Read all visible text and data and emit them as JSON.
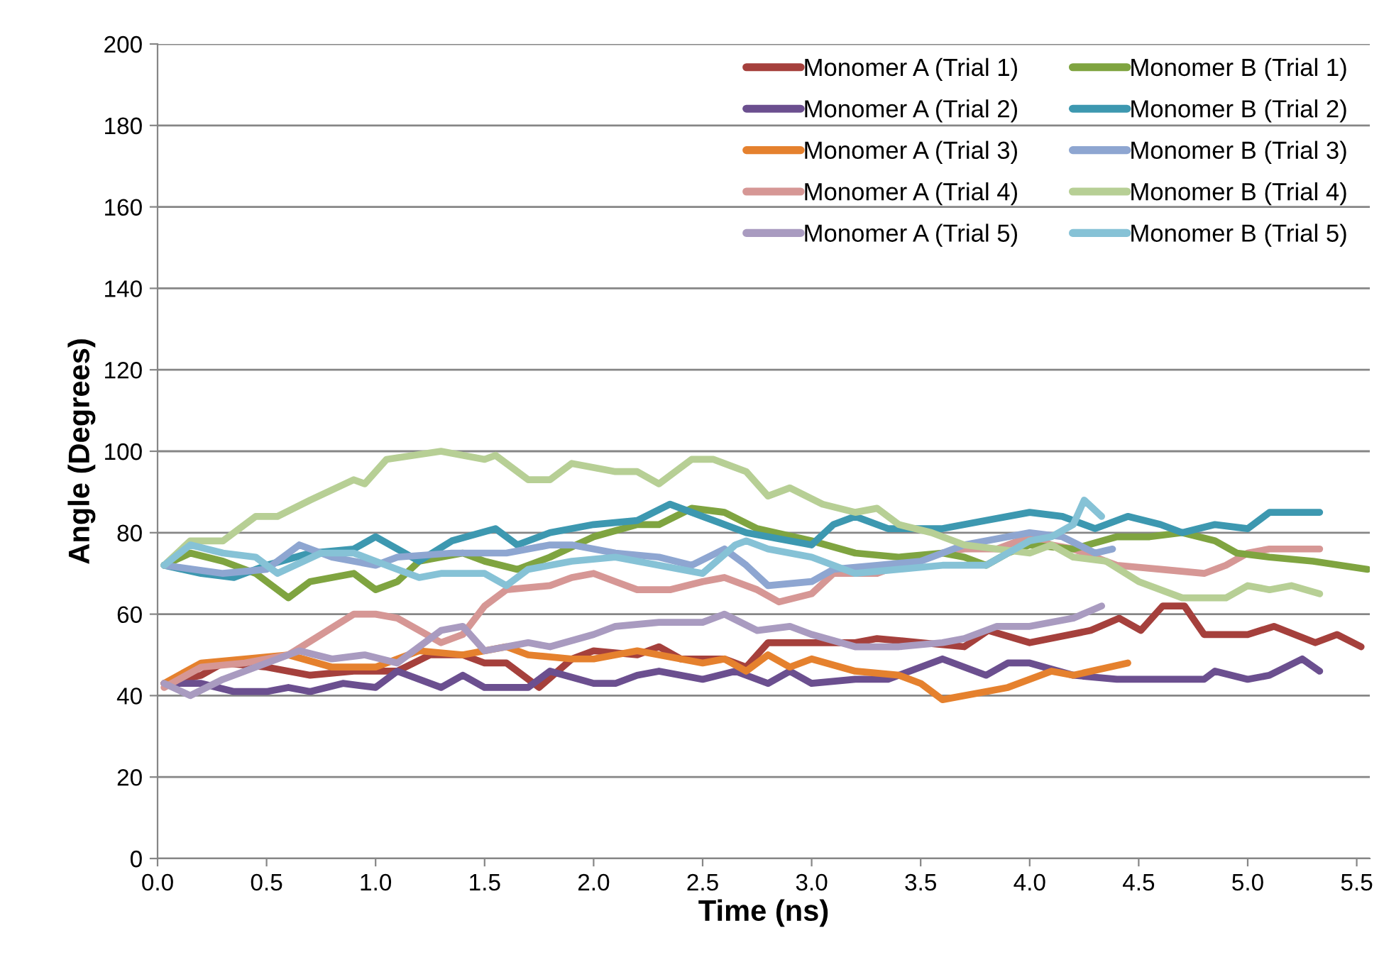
{
  "chart_data": {
    "type": "line",
    "xlabel": "Time (ns)",
    "ylabel": "Angle (Degrees)",
    "xlim": [
      0,
      5.56
    ],
    "ylim": [
      0,
      200
    ],
    "xticks": [
      {
        "value": 0,
        "label": "0.0"
      },
      0.5,
      {
        "value": 1,
        "label": "1.0"
      },
      1.5,
      {
        "value": 2,
        "label": "2.0"
      },
      2.5,
      {
        "value": 3,
        "label": "3.0"
      },
      3.5,
      {
        "value": 4,
        "label": "4.0"
      },
      4.5,
      {
        "value": 5,
        "label": "5.0"
      },
      5.5
    ],
    "yticks": [
      0,
      20,
      40,
      60,
      80,
      100,
      120,
      140,
      160,
      180,
      200
    ],
    "grid": "y",
    "legend": "top right",
    "marker": "none",
    "line_style": "solid",
    "series": [
      {
        "name": "Monomer A (Trial 1)",
        "color": "#a5403c",
        "x": [
          0.03,
          0.2,
          0.3,
          0.5,
          0.7,
          0.9,
          1.1,
          1.25,
          1.4,
          1.5,
          1.6,
          1.75,
          1.9,
          2.0,
          2.2,
          2.3,
          2.4,
          2.6,
          2.7,
          2.8,
          3.0,
          3.2,
          3.3,
          3.5,
          3.7,
          3.81,
          4.0,
          4.28,
          4.41,
          4.51,
          4.61,
          4.71,
          4.8,
          5.0,
          5.12,
          5.31,
          5.41,
          5.52
        ],
        "values": [
          43,
          45,
          48,
          47,
          45,
          46,
          46,
          50,
          50,
          48,
          48,
          42,
          49,
          51,
          50,
          52,
          49,
          49,
          47,
          53,
          53,
          53,
          54,
          53,
          52,
          56,
          53,
          56,
          59,
          56,
          62,
          62,
          55,
          55,
          57,
          53,
          55,
          52
        ]
      },
      {
        "name": "Monomer A (Trial 2)",
        "color": "#6b4f8f",
        "x": [
          0.03,
          0.2,
          0.35,
          0.5,
          0.6,
          0.7,
          0.85,
          1.0,
          1.1,
          1.3,
          1.4,
          1.5,
          1.7,
          1.8,
          2.0,
          2.1,
          2.2,
          2.3,
          2.5,
          2.65,
          2.8,
          2.9,
          3.0,
          3.2,
          3.35,
          3.5,
          3.6,
          3.8,
          3.9,
          4.0,
          4.2,
          4.4,
          4.8,
          4.85,
          5.0,
          5.1,
          5.25,
          5.33
        ],
        "values": [
          43,
          43,
          41,
          41,
          42,
          41,
          43,
          42,
          46,
          42,
          45,
          42,
          42,
          46,
          43,
          43,
          45,
          46,
          44,
          46,
          43,
          46,
          43,
          44,
          44,
          47,
          49,
          45,
          48,
          48,
          45,
          44,
          44,
          46,
          44,
          45,
          49,
          46
        ]
      },
      {
        "name": "Monomer A (Trial 3)",
        "color": "#e5812e",
        "x": [
          0.03,
          0.2,
          0.4,
          0.6,
          0.8,
          1.0,
          1.2,
          1.4,
          1.6,
          1.7,
          1.9,
          2.0,
          2.2,
          2.4,
          2.5,
          2.6,
          2.7,
          2.8,
          2.9,
          3.0,
          3.2,
          3.4,
          3.5,
          3.6,
          3.8,
          3.9,
          4.1,
          4.2,
          4.45
        ],
        "values": [
          43,
          48,
          49,
          50,
          47,
          47,
          51,
          50,
          52,
          50,
          49,
          49,
          51,
          49,
          48,
          49,
          46,
          50,
          47,
          49,
          46,
          45,
          43,
          39,
          41,
          42,
          46,
          45,
          48
        ]
      },
      {
        "name": "Monomer A (Trial 4)",
        "color": "#d69795",
        "x": [
          0.03,
          0.2,
          0.4,
          0.6,
          0.75,
          0.9,
          1.0,
          1.1,
          1.2,
          1.3,
          1.4,
          1.5,
          1.6,
          1.8,
          1.9,
          2.0,
          2.1,
          2.2,
          2.35,
          2.5,
          2.6,
          2.75,
          2.85,
          3.0,
          3.1,
          3.3,
          3.5,
          3.7,
          3.85,
          4.0,
          4.1,
          4.2,
          4.3,
          4.4,
          4.6,
          4.8,
          4.9,
          5.0,
          5.1,
          5.33
        ],
        "values": [
          42,
          47,
          48,
          50,
          55,
          60,
          60,
          59,
          56,
          53,
          55,
          62,
          66,
          67,
          69,
          70,
          68,
          66,
          66,
          68,
          69,
          66,
          63,
          65,
          70,
          70,
          74,
          76,
          76,
          79,
          77,
          76,
          74,
          72,
          71,
          70,
          72,
          75,
          76,
          76
        ]
      },
      {
        "name": "Monomer A (Trial 5)",
        "color": "#a99bc0",
        "x": [
          0.03,
          0.15,
          0.3,
          0.5,
          0.65,
          0.8,
          0.95,
          1.1,
          1.3,
          1.4,
          1.5,
          1.7,
          1.8,
          2.0,
          2.1,
          2.3,
          2.5,
          2.6,
          2.75,
          2.9,
          3.0,
          3.2,
          3.4,
          3.6,
          3.7,
          3.85,
          4.0,
          4.2,
          4.33
        ],
        "values": [
          43,
          40,
          44,
          48,
          51,
          49,
          50,
          48,
          56,
          57,
          51,
          53,
          52,
          55,
          57,
          58,
          58,
          60,
          56,
          57,
          55,
          52,
          52,
          53,
          54,
          57,
          57,
          59,
          62
        ]
      },
      {
        "name": "Monomer B (Trial 1)",
        "color": "#7fa440",
        "x": [
          0.03,
          0.15,
          0.3,
          0.45,
          0.6,
          0.7,
          0.9,
          1.0,
          1.1,
          1.2,
          1.4,
          1.5,
          1.65,
          1.8,
          2.0,
          2.2,
          2.3,
          2.45,
          2.6,
          2.75,
          3.0,
          3.2,
          3.4,
          3.6,
          3.7,
          3.8,
          3.9,
          4.0,
          4.2,
          4.4,
          4.55,
          4.7,
          4.85,
          4.95,
          5.1,
          5.3,
          5.55
        ],
        "values": [
          72,
          75,
          73,
          70,
          64,
          68,
          70,
          66,
          68,
          73,
          75,
          73,
          71,
          74,
          79,
          82,
          82,
          86,
          85,
          81,
          78,
          75,
          74,
          75,
          74,
          72,
          75,
          77,
          76,
          79,
          79,
          80,
          78,
          75,
          74,
          73,
          71
        ]
      },
      {
        "name": "Monomer B (Trial 2)",
        "color": "#3d98b0",
        "x": [
          0.03,
          0.2,
          0.35,
          0.5,
          0.7,
          0.9,
          1.0,
          1.1,
          1.2,
          1.35,
          1.55,
          1.65,
          1.8,
          2.0,
          2.2,
          2.35,
          2.5,
          2.7,
          2.8,
          3.0,
          3.1,
          3.2,
          3.35,
          3.6,
          3.8,
          4.0,
          4.15,
          4.3,
          4.45,
          4.6,
          4.7,
          4.85,
          5.0,
          5.1,
          5.33
        ],
        "values": [
          72,
          70,
          69,
          72,
          75,
          76,
          79,
          76,
          73,
          78,
          81,
          77,
          80,
          82,
          83,
          87,
          84,
          80,
          79,
          77,
          82,
          84,
          81,
          81,
          83,
          85,
          84,
          81,
          84,
          82,
          80,
          82,
          81,
          85,
          85
        ]
      },
      {
        "name": "Monomer B (Trial 3)",
        "color": "#8ea6d1",
        "x": [
          0.03,
          0.3,
          0.5,
          0.65,
          0.8,
          1.0,
          1.1,
          1.35,
          1.6,
          1.8,
          1.9,
          2.1,
          2.3,
          2.45,
          2.6,
          2.7,
          2.8,
          3.0,
          3.1,
          3.3,
          3.5,
          3.7,
          3.9,
          4.0,
          4.15,
          4.3,
          4.38
        ],
        "values": [
          72,
          70,
          71,
          77,
          74,
          72,
          74,
          75,
          75,
          77,
          77,
          75,
          74,
          72,
          76,
          72,
          67,
          68,
          71,
          72,
          73,
          77,
          79,
          80,
          79,
          75,
          76
        ]
      },
      {
        "name": "Monomer B (Trial 4)",
        "color": "#b7cf95",
        "x": [
          0.03,
          0.15,
          0.3,
          0.45,
          0.55,
          0.7,
          0.9,
          0.95,
          1.05,
          1.3,
          1.5,
          1.55,
          1.7,
          1.8,
          1.9,
          2.1,
          2.2,
          2.3,
          2.45,
          2.55,
          2.7,
          2.8,
          2.9,
          3.05,
          3.2,
          3.3,
          3.4,
          3.55,
          3.7,
          3.85,
          4.0,
          4.1,
          4.2,
          4.35,
          4.5,
          4.7,
          4.9,
          5.0,
          5.1,
          5.2,
          5.33
        ],
        "values": [
          72,
          78,
          78,
          84,
          84,
          88,
          93,
          92,
          98,
          100,
          98,
          99,
          93,
          93,
          97,
          95,
          95,
          92,
          98,
          98,
          95,
          89,
          91,
          87,
          85,
          86,
          82,
          80,
          77,
          76,
          75,
          77,
          74,
          73,
          68,
          64,
          64,
          67,
          66,
          67,
          65
        ]
      },
      {
        "name": "Monomer B (Trial 5)",
        "color": "#86c2d6",
        "x": [
          0.03,
          0.15,
          0.3,
          0.45,
          0.55,
          0.75,
          0.9,
          1.0,
          1.1,
          1.2,
          1.3,
          1.5,
          1.6,
          1.7,
          1.9,
          2.1,
          2.3,
          2.5,
          2.65,
          2.7,
          2.8,
          3.0,
          3.2,
          3.4,
          3.6,
          3.8,
          4.0,
          4.1,
          4.2,
          4.25,
          4.33
        ],
        "values": [
          72,
          77,
          75,
          74,
          70,
          75,
          75,
          73,
          71,
          69,
          70,
          70,
          67,
          71,
          73,
          74,
          72,
          70,
          77,
          78,
          76,
          74,
          70,
          71,
          72,
          72,
          78,
          79,
          82,
          88,
          84
        ]
      }
    ]
  }
}
